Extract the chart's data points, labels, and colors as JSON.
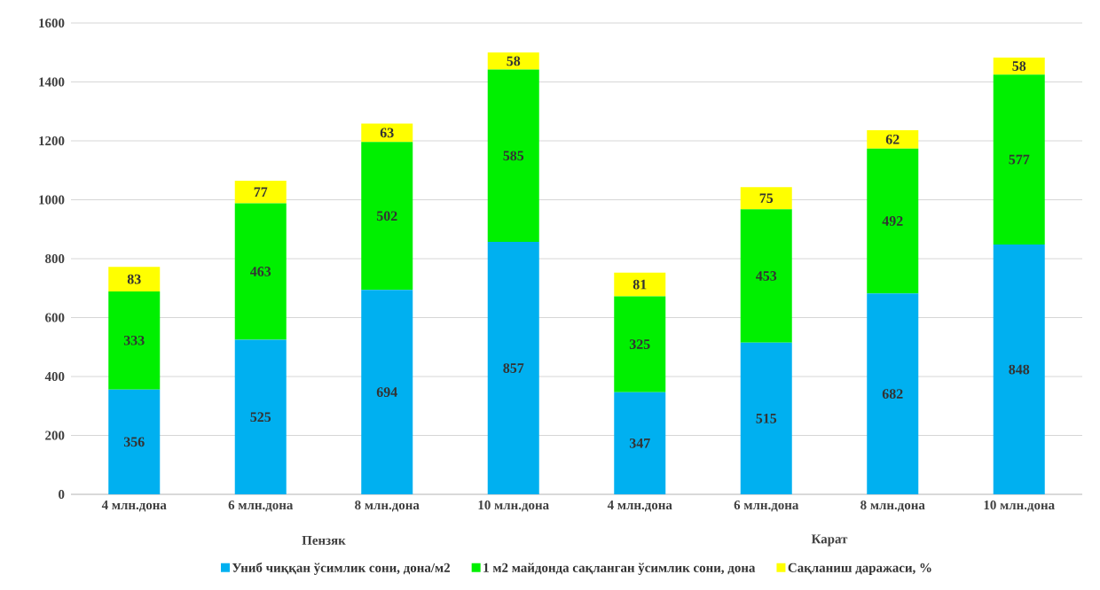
{
  "chart_data": {
    "type": "bar",
    "stacked": true,
    "categories": [
      "4 млн.дона",
      "6 млн.дона",
      "8 млн.дона",
      "10 млн.дона",
      "4 млн.дона",
      "6 млн.дона",
      "8 млн.дона",
      "10 млн.дона"
    ],
    "series": [
      {
        "name": "Униб чиққан ўсимлик сони, дона/м2",
        "color": "#00b0f0",
        "values": [
          356,
          525,
          694,
          857,
          347,
          515,
          682,
          848
        ]
      },
      {
        "name": "1 м2 майдонда сақланган ўсимлик сони, дона",
        "color": "#00f000",
        "values": [
          333,
          463,
          502,
          585,
          325,
          453,
          492,
          577
        ]
      },
      {
        "name": "Сақланиш даражаси, %",
        "color": "#ffff00",
        "values": [
          83,
          77,
          63,
          58,
          81,
          75,
          62,
          58
        ]
      }
    ],
    "annotations": [
      "Пензяк",
      "Карат"
    ],
    "ylim": [
      0,
      1600
    ],
    "yticks": [
      0,
      200,
      400,
      600,
      800,
      1000,
      1200,
      1400,
      1600
    ],
    "grid": "y",
    "legend": "bottom",
    "data_labels": true
  }
}
